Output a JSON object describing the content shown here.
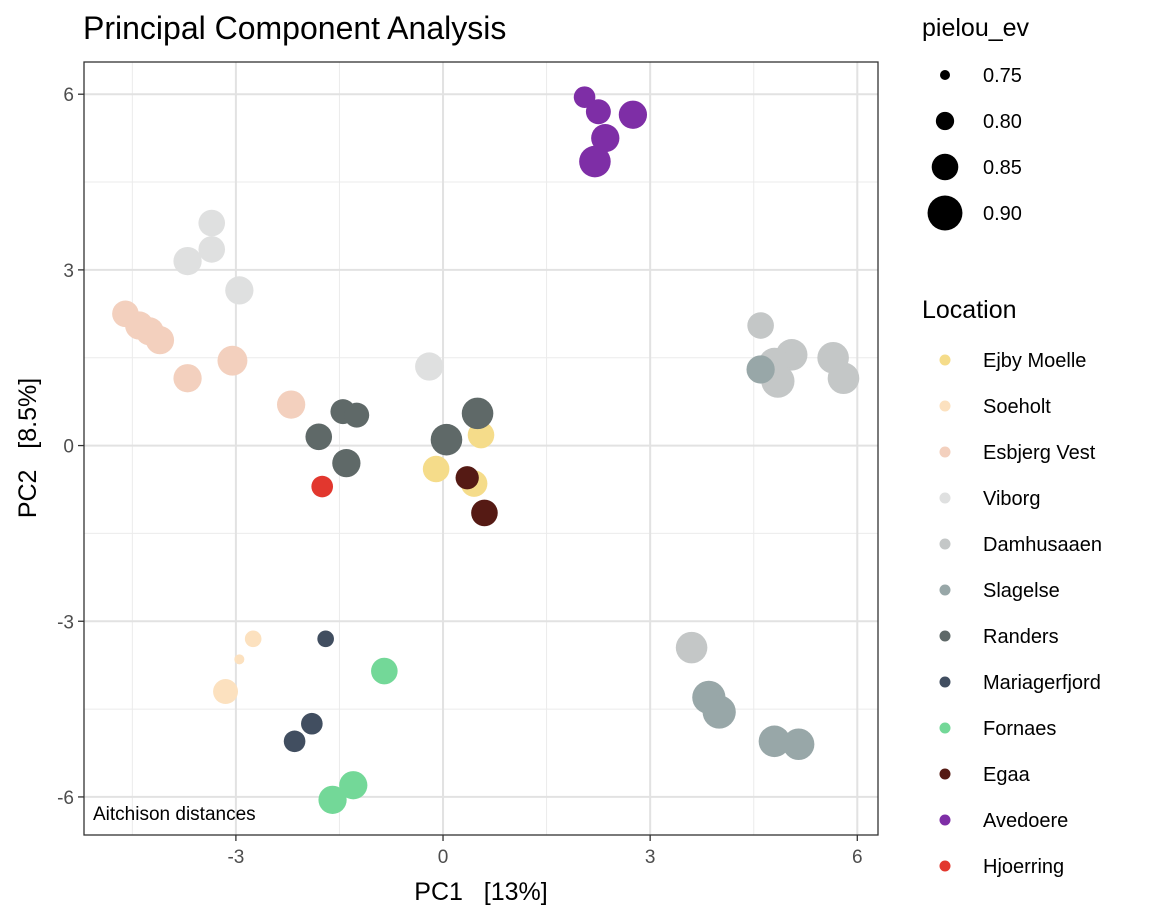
{
  "chart_data": {
    "type": "scatter",
    "title": "Principal Component Analysis",
    "xlabel": "PC1   [13%]",
    "ylabel": "PC2   [8.5%]",
    "xlim": [
      -5.2,
      6.3
    ],
    "ylim": [
      -6.65,
      6.55
    ],
    "xticks": [
      -3,
      0,
      3,
      6
    ],
    "yticks": [
      6,
      3,
      0,
      -3,
      -6
    ],
    "grid": true,
    "annotation": "Aitchison distances",
    "size_legend": {
      "title": "pielou_ev",
      "values": [
        0.75,
        0.8,
        0.85,
        0.9
      ],
      "labels": [
        "0.75",
        "0.80",
        "0.85",
        "0.90"
      ]
    },
    "legend": {
      "title": "Location",
      "placement": "right"
    },
    "series": [
      {
        "name": "Ejby Moelle",
        "color": "#F5DC8A",
        "points": [
          {
            "x": 0.55,
            "y": 0.18,
            "s": 0.85
          },
          {
            "x": -0.1,
            "y": -0.4,
            "s": 0.85
          },
          {
            "x": 0.45,
            "y": -0.65,
            "s": 0.85
          }
        ]
      },
      {
        "name": "Soeholt",
        "color": "#FCE1BF",
        "points": [
          {
            "x": -2.75,
            "y": -3.3,
            "s": 0.79
          },
          {
            "x": -2.95,
            "y": -3.65,
            "s": 0.75
          },
          {
            "x": -3.15,
            "y": -4.2,
            "s": 0.84
          }
        ]
      },
      {
        "name": "Esbjerg Vest",
        "color": "#F3D0BE",
        "points": [
          {
            "x": -4.6,
            "y": 2.25,
            "s": 0.85
          },
          {
            "x": -4.4,
            "y": 2.05,
            "s": 0.86
          },
          {
            "x": -4.25,
            "y": 1.95,
            "s": 0.86
          },
          {
            "x": -4.1,
            "y": 1.8,
            "s": 0.86
          },
          {
            "x": -3.7,
            "y": 1.15,
            "s": 0.86
          },
          {
            "x": -3.05,
            "y": 1.45,
            "s": 0.87
          },
          {
            "x": -2.2,
            "y": 0.7,
            "s": 0.86
          }
        ]
      },
      {
        "name": "Viborg",
        "color": "#DFE0E0",
        "points": [
          {
            "x": -3.35,
            "y": 3.8,
            "s": 0.85
          },
          {
            "x": -3.35,
            "y": 3.35,
            "s": 0.85
          },
          {
            "x": -3.7,
            "y": 3.15,
            "s": 0.86
          },
          {
            "x": -2.95,
            "y": 2.65,
            "s": 0.86
          },
          {
            "x": -0.2,
            "y": 1.35,
            "s": 0.86
          }
        ]
      },
      {
        "name": "Damhusaaen",
        "color": "#C4C7C7",
        "points": [
          {
            "x": 4.6,
            "y": 2.05,
            "s": 0.85
          },
          {
            "x": 5.05,
            "y": 1.55,
            "s": 0.88
          },
          {
            "x": 4.8,
            "y": 1.4,
            "s": 0.88
          },
          {
            "x": 5.65,
            "y": 1.5,
            "s": 0.88
          },
          {
            "x": 5.8,
            "y": 1.15,
            "s": 0.88
          },
          {
            "x": 4.85,
            "y": 1.1,
            "s": 0.89
          },
          {
            "x": 3.6,
            "y": -3.45,
            "s": 0.88
          }
        ]
      },
      {
        "name": "Slagelse",
        "color": "#98A7A8",
        "points": [
          {
            "x": 4.6,
            "y": 1.3,
            "s": 0.86
          },
          {
            "x": 3.85,
            "y": -4.3,
            "s": 0.89
          },
          {
            "x": 4.0,
            "y": -4.55,
            "s": 0.89
          },
          {
            "x": 4.8,
            "y": -5.05,
            "s": 0.88
          },
          {
            "x": 5.15,
            "y": -5.1,
            "s": 0.88
          }
        ]
      },
      {
        "name": "Randers",
        "color": "#5F6968",
        "points": [
          {
            "x": -1.45,
            "y": 0.58,
            "s": 0.84
          },
          {
            "x": -1.25,
            "y": 0.52,
            "s": 0.84
          },
          {
            "x": -1.8,
            "y": 0.15,
            "s": 0.85
          },
          {
            "x": -1.4,
            "y": -0.3,
            "s": 0.86
          },
          {
            "x": 0.05,
            "y": 0.1,
            "s": 0.88
          },
          {
            "x": 0.5,
            "y": 0.55,
            "s": 0.88
          }
        ]
      },
      {
        "name": "Mariagerfjord",
        "color": "#414E60",
        "points": [
          {
            "x": -1.7,
            "y": -3.3,
            "s": 0.79
          },
          {
            "x": -1.9,
            "y": -4.75,
            "s": 0.82
          },
          {
            "x": -2.15,
            "y": -5.05,
            "s": 0.82
          }
        ]
      },
      {
        "name": "Fornaes",
        "color": "#73D898",
        "points": [
          {
            "x": -0.85,
            "y": -3.85,
            "s": 0.85
          },
          {
            "x": -1.3,
            "y": -5.8,
            "s": 0.86
          },
          {
            "x": -1.6,
            "y": -6.05,
            "s": 0.86
          }
        ]
      },
      {
        "name": "Egaa",
        "color": "#551A14",
        "points": [
          {
            "x": 0.35,
            "y": -0.55,
            "s": 0.83
          },
          {
            "x": 0.6,
            "y": -1.15,
            "s": 0.85
          }
        ]
      },
      {
        "name": "Avedoere",
        "color": "#7E2EA6",
        "points": [
          {
            "x": 2.05,
            "y": 5.95,
            "s": 0.82
          },
          {
            "x": 2.25,
            "y": 5.7,
            "s": 0.84
          },
          {
            "x": 2.75,
            "y": 5.65,
            "s": 0.86
          },
          {
            "x": 2.35,
            "y": 5.25,
            "s": 0.86
          },
          {
            "x": 2.2,
            "y": 4.85,
            "s": 0.88
          }
        ]
      },
      {
        "name": "Hjoerring",
        "color": "#E2372E",
        "points": [
          {
            "x": -1.75,
            "y": -0.7,
            "s": 0.82
          }
        ]
      }
    ]
  }
}
